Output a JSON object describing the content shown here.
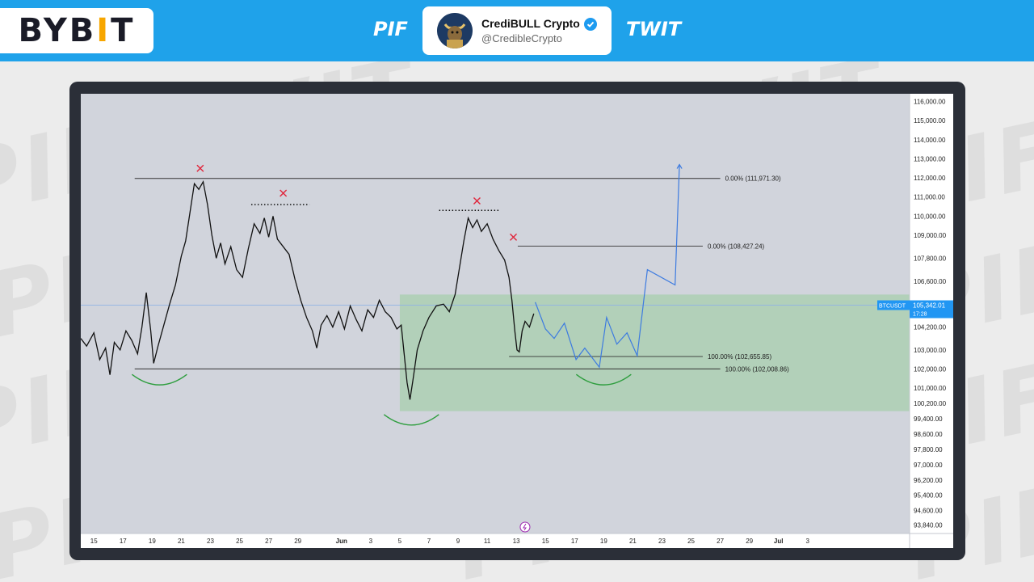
{
  "header": {
    "brand_logo_text": "BYB",
    "brand_logo_accent": "I",
    "brand_logo_tail": "T",
    "left_tag": "PIF",
    "right_tag": "TWIT",
    "profile": {
      "name": "CrediBULL Crypto",
      "handle": "@CredibleCrypto"
    }
  },
  "watermark_text": "PIF TWIT",
  "colors": {
    "brand_blue": "#1fa2ea",
    "accent_yellow": "#f7a600",
    "chart_bg": "#d1d4dc",
    "projection_blue": "#3d7be0",
    "zone_green": "#a7cfae",
    "marker_red": "#e0243a",
    "arc_green": "#2f9e3f"
  },
  "chart_data": {
    "type": "line",
    "symbol": "BTCUSDT",
    "last_price": "105,342.01",
    "countdown": "17:28",
    "ylim": [
      93400,
      116400
    ],
    "y_ticks": [
      116000,
      115000,
      114000,
      113000,
      112000,
      111000,
      110000,
      109000,
      107800,
      106600,
      104200,
      103000,
      102000,
      101000,
      100200,
      99400,
      98600,
      97800,
      97000,
      96200,
      95400,
      94600,
      93840
    ],
    "y_tick_labels": [
      "116,000.00",
      "115,000.00",
      "114,000.00",
      "113,000.00",
      "112,000.00",
      "111,000.00",
      "110,000.00",
      "109,000.00",
      "107,800.00",
      "106,600.00",
      "104,200.00",
      "103,000.00",
      "102,000.00",
      "101,000.00",
      "100,200.00",
      "99,400.00",
      "98,600.00",
      "97,800.00",
      "97,000.00",
      "96,200.00",
      "95,400.00",
      "94,600.00",
      "93,840.00"
    ],
    "x_ticks": [
      {
        "label": "15",
        "day": 15
      },
      {
        "label": "17",
        "day": 17
      },
      {
        "label": "19",
        "day": 19
      },
      {
        "label": "21",
        "day": 21
      },
      {
        "label": "23",
        "day": 23
      },
      {
        "label": "25",
        "day": 25
      },
      {
        "label": "27",
        "day": 27
      },
      {
        "label": "29",
        "day": 29
      },
      {
        "label": "Jun",
        "day": 32
      },
      {
        "label": "3",
        "day": 34
      },
      {
        "label": "5",
        "day": 36
      },
      {
        "label": "7",
        "day": 38
      },
      {
        "label": "9",
        "day": 40
      },
      {
        "label": "11",
        "day": 42
      },
      {
        "label": "13",
        "day": 44
      },
      {
        "label": "15",
        "day": 46
      },
      {
        "label": "17",
        "day": 48
      },
      {
        "label": "19",
        "day": 50
      },
      {
        "label": "21",
        "day": 52
      },
      {
        "label": "23",
        "day": 54
      },
      {
        "label": "25",
        "day": 56
      },
      {
        "label": "27",
        "day": 58
      },
      {
        "label": "29",
        "day": 60
      },
      {
        "label": "Jul",
        "day": 62
      },
      {
        "label": "3",
        "day": 64
      }
    ],
    "x_range_days": [
      14.1,
      71.0
    ],
    "price_path": [
      [
        14.1,
        103600
      ],
      [
        14.5,
        103200
      ],
      [
        15.0,
        103900
      ],
      [
        15.4,
        102500
      ],
      [
        15.8,
        103100
      ],
      [
        16.1,
        101700
      ],
      [
        16.4,
        103400
      ],
      [
        16.8,
        103000
      ],
      [
        17.2,
        104000
      ],
      [
        17.6,
        103500
      ],
      [
        18.0,
        102800
      ],
      [
        18.3,
        104200
      ],
      [
        18.6,
        106000
      ],
      [
        18.9,
        104000
      ],
      [
        19.1,
        102300
      ],
      [
        19.4,
        103200
      ],
      [
        19.8,
        104300
      ],
      [
        20.2,
        105400
      ],
      [
        20.6,
        106400
      ],
      [
        21.0,
        107900
      ],
      [
        21.3,
        108700
      ],
      [
        21.6,
        110200
      ],
      [
        21.9,
        111700
      ],
      [
        22.2,
        111400
      ],
      [
        22.5,
        111800
      ],
      [
        22.8,
        110600
      ],
      [
        23.1,
        109000
      ],
      [
        23.4,
        107800
      ],
      [
        23.7,
        108600
      ],
      [
        24.0,
        107500
      ],
      [
        24.4,
        108400
      ],
      [
        24.8,
        107200
      ],
      [
        25.2,
        106800
      ],
      [
        25.6,
        108300
      ],
      [
        26.0,
        109600
      ],
      [
        26.4,
        109100
      ],
      [
        26.7,
        109900
      ],
      [
        27.0,
        108900
      ],
      [
        27.3,
        110000
      ],
      [
        27.6,
        108800
      ],
      [
        28.0,
        108400
      ],
      [
        28.4,
        108000
      ],
      [
        28.8,
        106700
      ],
      [
        29.2,
        105600
      ],
      [
        29.6,
        104700
      ],
      [
        30.0,
        104000
      ],
      [
        30.3,
        103100
      ],
      [
        30.6,
        104300
      ],
      [
        31.0,
        104800
      ],
      [
        31.4,
        104200
      ],
      [
        31.8,
        105000
      ],
      [
        32.2,
        104100
      ],
      [
        32.6,
        105300
      ],
      [
        33.0,
        104600
      ],
      [
        33.4,
        104000
      ],
      [
        33.8,
        105100
      ],
      [
        34.2,
        104700
      ],
      [
        34.6,
        105600
      ],
      [
        35.0,
        105000
      ],
      [
        35.4,
        104700
      ],
      [
        35.8,
        104100
      ],
      [
        36.1,
        104300
      ],
      [
        36.3,
        102800
      ],
      [
        36.5,
        101300
      ],
      [
        36.7,
        100400
      ],
      [
        36.9,
        101400
      ],
      [
        37.2,
        103000
      ],
      [
        37.6,
        104000
      ],
      [
        38.0,
        104700
      ],
      [
        38.5,
        105300
      ],
      [
        39.0,
        105400
      ],
      [
        39.4,
        105000
      ],
      [
        39.8,
        105900
      ],
      [
        40.1,
        107300
      ],
      [
        40.4,
        108700
      ],
      [
        40.7,
        109900
      ],
      [
        41.0,
        109400
      ],
      [
        41.3,
        109800
      ],
      [
        41.6,
        109200
      ],
      [
        42.0,
        109600
      ],
      [
        42.4,
        108800
      ],
      [
        42.8,
        108200
      ],
      [
        43.2,
        107700
      ],
      [
        43.5,
        106800
      ],
      [
        43.7,
        105600
      ],
      [
        43.9,
        104000
      ],
      [
        44.05,
        103000
      ],
      [
        44.2,
        102900
      ],
      [
        44.4,
        104000
      ],
      [
        44.6,
        104500
      ],
      [
        44.9,
        104200
      ],
      [
        45.2,
        104900
      ]
    ],
    "projection_path": [
      [
        45.3,
        105500
      ],
      [
        46.0,
        104100
      ],
      [
        46.6,
        103600
      ],
      [
        47.3,
        104400
      ],
      [
        48.1,
        102500
      ],
      [
        48.7,
        103100
      ],
      [
        49.1,
        102700
      ],
      [
        49.7,
        102100
      ],
      [
        50.2,
        104700
      ],
      [
        50.9,
        103300
      ],
      [
        51.6,
        103900
      ],
      [
        52.3,
        102700
      ],
      [
        53.0,
        107200
      ],
      [
        54.9,
        106400
      ],
      [
        55.2,
        112700
      ]
    ],
    "levels": [
      {
        "label": "0.00% (111,971.30)",
        "value": 111971.3,
        "from_day": 17.8,
        "to_day": 58.0
      },
      {
        "label": "0.00% (108,427.24)",
        "value": 108427.24,
        "from_day": 44.1,
        "to_day": 56.8
      },
      {
        "label": "100.00% (102,655.85)",
        "value": 102655.85,
        "from_day": 43.5,
        "to_day": 56.8
      },
      {
        "label": "100.00% (102,008.86)",
        "value": 102008.86,
        "from_day": 17.8,
        "to_day": 58.0
      }
    ],
    "current_price_line": 105342.01,
    "zone": {
      "from_day": 36.0,
      "to_day": 71.0,
      "top": 105900,
      "bottom": 99800
    },
    "resistance_marks": [
      {
        "day": 22.3,
        "value": 112500
      },
      {
        "day": 28.0,
        "value": 111200
      },
      {
        "day": 41.3,
        "value": 110800
      },
      {
        "day": 43.8,
        "value": 108900
      }
    ],
    "dotted_tops": [
      {
        "from_day": 25.8,
        "to_day": 29.8,
        "value": 110600
      },
      {
        "from_day": 38.7,
        "to_day": 42.9,
        "value": 110300
      }
    ],
    "support_arcs": [
      {
        "center_day": 19.5,
        "value": 101300
      },
      {
        "center_day": 36.8,
        "value": 99200
      },
      {
        "center_day": 50.0,
        "value": 101300
      }
    ]
  }
}
